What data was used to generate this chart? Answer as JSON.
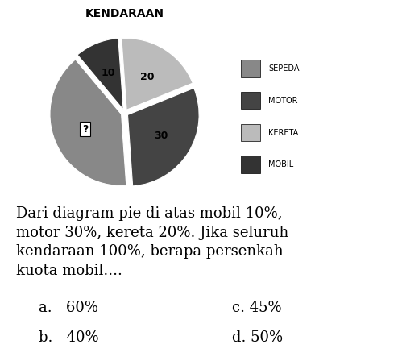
{
  "title": "KENDARAAN",
  "slices": [
    40,
    30,
    20,
    10
  ],
  "labels": [
    "?",
    "30",
    "20",
    "10"
  ],
  "legend_labels": [
    "SEPEDA",
    "MOTOR",
    "KERETA",
    "MOBIL"
  ],
  "colors": [
    "#888888",
    "#444444",
    "#bbbbbb",
    "#333333"
  ],
  "explode": [
    0.05,
    0.05,
    0.05,
    0.05
  ],
  "startangle": 130,
  "question_text": "Dari diagram pie di atas mobil 10%,\nmotor 30%, kereta 20%. Jika seluruh\nkendaraan 100%, berapa persenkah\nkuota mobil....",
  "options": [
    "a.   60%",
    "b.   40%",
    "c. 45%",
    "d. 50%"
  ],
  "bg_color": "#ffffff",
  "text_color": "#000000",
  "title_fontsize": 10,
  "legend_fontsize": 7,
  "label_fontsize": 9,
  "question_fontsize": 13,
  "option_fontsize": 13
}
